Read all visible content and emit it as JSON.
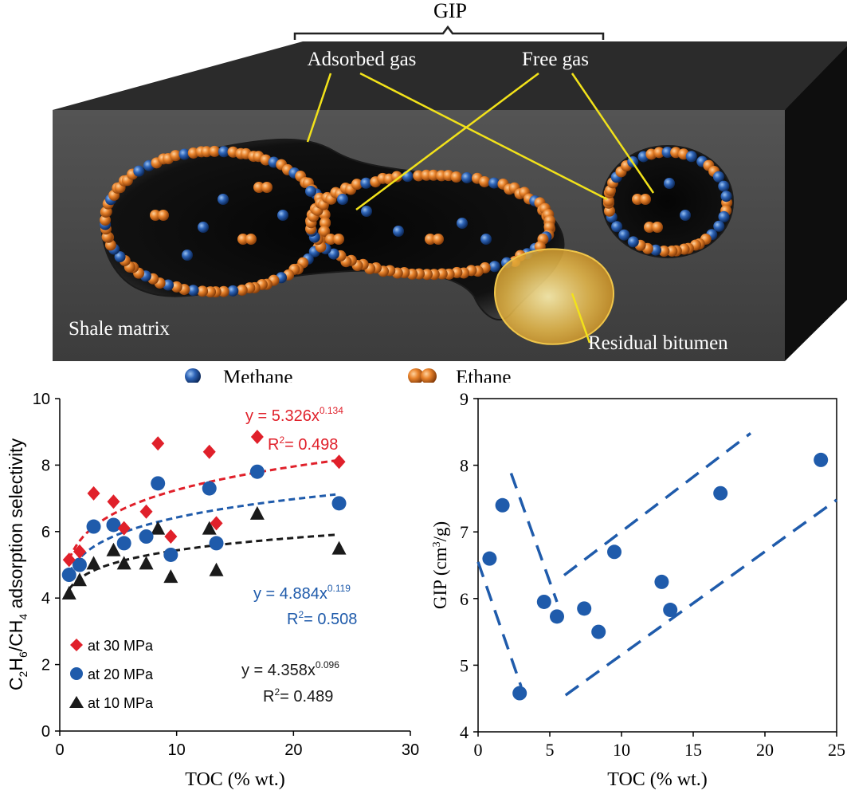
{
  "diagram": {
    "gip_label": "GIP",
    "adsorbed_label": "Adsorbed gas",
    "free_label": "Free gas",
    "shale_label": "Shale matrix",
    "bitumen_label": "Residual bitumen",
    "methane_legend": "Methane",
    "ethane_legend": "Ethane",
    "colors": {
      "methane": "#2f5fa8",
      "ethane": "#e0822e",
      "leader": "#f2e21a",
      "block": "#4a4a4a"
    }
  },
  "chart_data": [
    {
      "type": "scatter",
      "xlabel": "TOC (% wt.)",
      "ylabel_parts": [
        "C",
        "2",
        "H",
        "6",
        "/CH",
        "4",
        " adsorption selectivity"
      ],
      "xlim": [
        0,
        30
      ],
      "ylim": [
        0,
        10
      ],
      "xticks": [
        "0",
        "10",
        "20",
        "30"
      ],
      "yticks": [
        "0",
        "2",
        "4",
        "6",
        "8",
        "10"
      ],
      "legend_position": "bottom-left",
      "series": [
        {
          "name": "at 30 MPa",
          "marker": "diamond",
          "color": "#e0202a",
          "x": [
            0.8,
            1.7,
            2.9,
            4.6,
            5.5,
            7.4,
            8.4,
            9.5,
            12.8,
            13.4,
            16.9,
            23.9
          ],
          "y": [
            5.15,
            5.4,
            7.15,
            6.9,
            6.1,
            6.6,
            8.65,
            5.85,
            8.4,
            6.25,
            8.85,
            8.1
          ],
          "fit": {
            "a": 5.326,
            "b": 0.134,
            "r2": 0.498
          },
          "equation_main": "y = 5.326x",
          "equation_exp": "0.134",
          "r2_label": "R",
          "r2_value": "= 0.498"
        },
        {
          "name": "at 20 MPa",
          "marker": "circle",
          "color": "#1f5bab",
          "x": [
            0.8,
            1.7,
            2.9,
            4.6,
            5.5,
            7.4,
            8.4,
            9.5,
            12.8,
            13.4,
            16.9,
            23.9
          ],
          "y": [
            4.7,
            5.0,
            6.15,
            6.2,
            5.65,
            5.85,
            7.45,
            5.3,
            7.3,
            5.65,
            7.8,
            6.85
          ],
          "fit": {
            "a": 4.884,
            "b": 0.119,
            "r2": 0.508
          },
          "equation_main": "y = 4.884x",
          "equation_exp": "0.119",
          "r2_label": "R",
          "r2_value": "= 0.508"
        },
        {
          "name": "at 10 MPa",
          "marker": "triangle",
          "color": "#1a1a1a",
          "x": [
            0.8,
            1.7,
            2.9,
            4.6,
            5.5,
            7.4,
            8.4,
            9.5,
            12.8,
            13.4,
            16.9,
            23.9
          ],
          "y": [
            4.15,
            4.55,
            5.05,
            5.45,
            5.05,
            5.05,
            6.1,
            4.65,
            6.1,
            4.85,
            6.55,
            5.5
          ],
          "fit": {
            "a": 4.358,
            "b": 0.096,
            "r2": 0.489
          },
          "equation_main": "y = 4.358x",
          "equation_exp": "0.096",
          "r2_label": "R",
          "r2_value": "= 0.489"
        }
      ]
    },
    {
      "type": "scatter",
      "xlabel": "TOC (% wt.)",
      "ylabel_main": "GIP (cm",
      "ylabel_sup": "3",
      "ylabel_end": "/g)",
      "xlim": [
        0,
        25
      ],
      "ylim": [
        4,
        9
      ],
      "xticks": [
        "0",
        "5",
        "10",
        "15",
        "20",
        "25"
      ],
      "yticks": [
        "4",
        "5",
        "6",
        "7",
        "8",
        "9"
      ],
      "color": "#1f5bab",
      "x": [
        0.8,
        1.7,
        2.9,
        4.6,
        5.5,
        7.4,
        8.4,
        9.5,
        12.8,
        13.4,
        16.9,
        23.9
      ],
      "y": [
        6.6,
        7.4,
        4.58,
        5.95,
        5.73,
        5.85,
        5.5,
        6.7,
        6.25,
        5.83,
        7.58,
        8.08
      ],
      "guide_lines": [
        {
          "x": [
            0,
            3.0
          ],
          "y": [
            6.55,
            4.68
          ]
        },
        {
          "x": [
            2.3,
            5.5
          ],
          "y": [
            7.88,
            5.95
          ]
        },
        {
          "x": [
            6.0,
            19.0
          ],
          "y": [
            6.35,
            8.48
          ]
        },
        {
          "x": [
            6.1,
            25.0
          ],
          "y": [
            4.55,
            7.48
          ]
        }
      ]
    }
  ]
}
